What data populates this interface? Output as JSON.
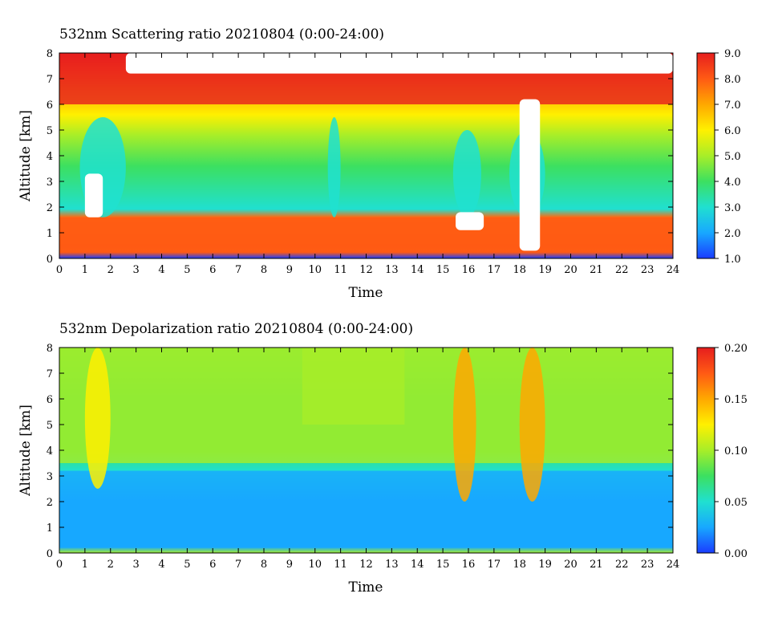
{
  "chart_data": [
    {
      "type": "heatmap",
      "title": "532nm Scattering ratio  20210804 (0:00-24:00)",
      "xlabel": "Time",
      "ylabel": "Altitude [km]",
      "xlim": [
        0,
        24
      ],
      "ylim": [
        0,
        8
      ],
      "x_ticks": [
        "0",
        "1",
        "2",
        "3",
        "4",
        "5",
        "6",
        "7",
        "8",
        "9",
        "10",
        "11",
        "12",
        "13",
        "14",
        "15",
        "16",
        "17",
        "18",
        "19",
        "20",
        "21",
        "22",
        "23",
        "24"
      ],
      "y_ticks": [
        "0",
        "1",
        "2",
        "3",
        "4",
        "5",
        "6",
        "7",
        "8"
      ],
      "colorbar": {
        "range": [
          1.0,
          9.0
        ],
        "ticks": [
          "1.0",
          "2.0",
          "3.0",
          "4.0",
          "5.0",
          "6.0",
          "7.0",
          "8.0",
          "9.0"
        ],
        "colormap": [
          "#1a3cff",
          "#18a8ff",
          "#20e0d0",
          "#3ce060",
          "#a8ee28",
          "#fff000",
          "#ffa800",
          "#ff5a14",
          "#e61e1e"
        ]
      },
      "features": [
        {
          "kind": "high-ratio layer aloft",
          "x": [
            0,
            24
          ],
          "y": [
            6.0,
            8.0
          ],
          "value": 8.5
        },
        {
          "kind": "clear gap (no data) above layer",
          "x": [
            2.6,
            24
          ],
          "y": [
            7.2,
            8.0
          ]
        },
        {
          "kind": "aerosol boundary layer",
          "x": [
            0,
            24
          ],
          "y": [
            0.4,
            1.6
          ],
          "value": 7.5
        },
        {
          "kind": "low-ratio column",
          "x": [
            0.8,
            2.6
          ],
          "y": [
            1.6,
            5.5
          ],
          "value": 2.5
        },
        {
          "kind": "low-ratio column",
          "x": [
            10.5,
            11.0
          ],
          "y": [
            1.6,
            5.5
          ],
          "value": 2.8
        },
        {
          "kind": "low-ratio column",
          "x": [
            15.4,
            16.5
          ],
          "y": [
            1.6,
            5.0
          ],
          "value": 2.5
        },
        {
          "kind": "low-ratio column",
          "x": [
            17.6,
            19.0
          ],
          "y": [
            1.6,
            5.0
          ],
          "value": 3.0
        },
        {
          "kind": "cloud (saturated / masked)",
          "x": [
            1.0,
            1.7
          ],
          "y": [
            1.6,
            3.3
          ]
        },
        {
          "kind": "cloud (saturated / masked)",
          "x": [
            15.5,
            16.6
          ],
          "y": [
            1.1,
            1.8
          ]
        },
        {
          "kind": "cloud (saturated / masked)",
          "x": [
            18.0,
            18.8
          ],
          "y": [
            0.3,
            6.2
          ]
        }
      ]
    },
    {
      "type": "heatmap",
      "title": "532nm Depolarization ratio  20210804 (0:00-24:00)",
      "xlabel": "Time",
      "ylabel": "Altitude [km]",
      "xlim": [
        0,
        24
      ],
      "ylim": [
        0,
        8
      ],
      "x_ticks": [
        "0",
        "1",
        "2",
        "3",
        "4",
        "5",
        "6",
        "7",
        "8",
        "9",
        "10",
        "11",
        "12",
        "13",
        "14",
        "15",
        "16",
        "17",
        "18",
        "19",
        "20",
        "21",
        "22",
        "23",
        "24"
      ],
      "y_ticks": [
        "0",
        "1",
        "2",
        "3",
        "4",
        "5",
        "6",
        "7",
        "8"
      ],
      "colorbar": {
        "range": [
          0.0,
          0.2
        ],
        "ticks": [
          "0.00",
          "0.05",
          "0.10",
          "0.15",
          "0.20"
        ],
        "colormap": [
          "#1a3cff",
          "#18a8ff",
          "#20e0d0",
          "#3ce060",
          "#a8ee28",
          "#fff000",
          "#ffa800",
          "#ff5a14",
          "#e61e1e"
        ]
      },
      "features": [
        {
          "kind": "background above 3.5 km",
          "x": [
            0,
            24
          ],
          "y": [
            3.5,
            8.0
          ],
          "value": 0.09
        },
        {
          "kind": "low-depolarization layer",
          "x": [
            0,
            24
          ],
          "y": [
            0.2,
            3.2
          ],
          "value": 0.035
        },
        {
          "kind": "high-depolarization column",
          "x": [
            1.0,
            2.0
          ],
          "y": [
            2.5,
            8.0
          ],
          "value": 0.12
        },
        {
          "kind": "high-depolarization column",
          "x": [
            15.4,
            16.3
          ],
          "y": [
            2.0,
            8.0
          ],
          "value": 0.15
        },
        {
          "kind": "high-depolarization column",
          "x": [
            18.0,
            19.0
          ],
          "y": [
            2.0,
            8.0
          ],
          "value": 0.16
        },
        {
          "kind": "mottled elevated values",
          "x": [
            9.5,
            13.5
          ],
          "y": [
            5.0,
            8.0
          ],
          "value": 0.11
        }
      ]
    }
  ]
}
